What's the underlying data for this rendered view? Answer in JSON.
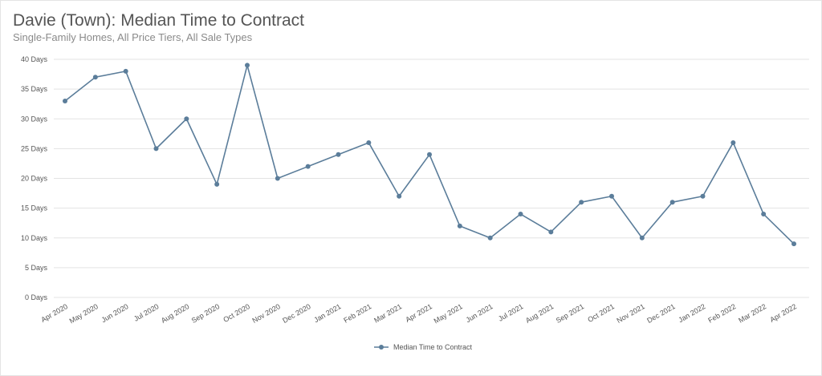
{
  "header": {
    "title": "Davie (Town): Median Time to Contract",
    "subtitle": "Single-Family Homes, All Price Tiers, All Sale Types"
  },
  "colors": {
    "series": "#5b7d9a",
    "grid": "#e3e3e3",
    "axis_text": "#555555"
  },
  "chart_data": {
    "type": "line",
    "title": "Davie (Town): Median Time to Contract",
    "subtitle": "Single-Family Homes, All Price Tiers, All Sale Types",
    "xlabel": "",
    "ylabel": "",
    "ylim": [
      0,
      40
    ],
    "y_ticks": [
      0,
      5,
      10,
      15,
      20,
      25,
      30,
      35,
      40
    ],
    "y_tick_suffix": " Days",
    "grid": true,
    "legend": "bottom-center",
    "categories": [
      "Apr 2020",
      "May 2020",
      "Jun 2020",
      "Jul 2020",
      "Aug 2020",
      "Sep 2020",
      "Oct 2020",
      "Nov 2020",
      "Dec 2020",
      "Jan 2021",
      "Feb 2021",
      "Mar 2021",
      "Apr 2021",
      "May 2021",
      "Jun 2021",
      "Jul 2021",
      "Aug 2021",
      "Sep 2021",
      "Oct 2021",
      "Nov 2021",
      "Dec 2021",
      "Jan 2022",
      "Feb 2022",
      "Mar 2022",
      "Apr 2022"
    ],
    "series": [
      {
        "name": "Median Time to Contract",
        "values": [
          33,
          37,
          38,
          25,
          30,
          19,
          39,
          20,
          22,
          24,
          26,
          17,
          24,
          12,
          10,
          14,
          11,
          16,
          17,
          10,
          16,
          17,
          26,
          14,
          9
        ]
      }
    ]
  }
}
